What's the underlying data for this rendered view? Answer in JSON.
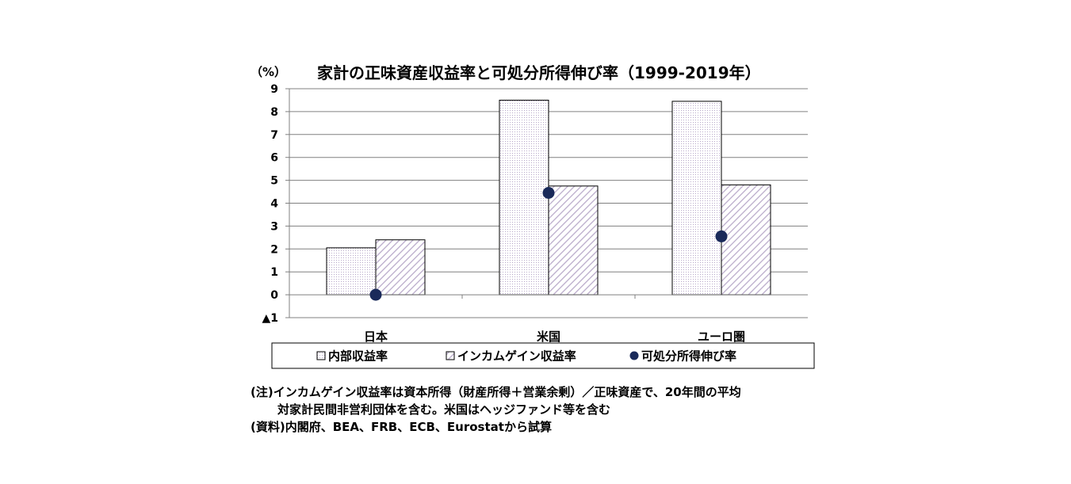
{
  "chart_data": {
    "type": "bar",
    "title": "家計の正味資産収益率と可処分所得伸び率（1999-2019年）",
    "ylabel": "（%）",
    "categories": [
      "日本",
      "米国",
      "ユーロ圏"
    ],
    "series": [
      {
        "name": "内部収益率",
        "kind": "bar",
        "pattern": "dots",
        "values": [
          2.05,
          8.5,
          8.45
        ]
      },
      {
        "name": "インカムゲイン収益率",
        "kind": "bar",
        "pattern": "hatch",
        "values": [
          2.4,
          4.75,
          4.8
        ]
      },
      {
        "name": "可処分所得伸び率",
        "kind": "marker",
        "values": [
          0.0,
          4.45,
          2.55
        ]
      }
    ],
    "ylim": [
      -1,
      9
    ],
    "yticks": [
      9,
      8,
      7,
      6,
      5,
      4,
      3,
      2,
      1,
      0,
      -1
    ],
    "ytick_labels": [
      "9",
      "8",
      "7",
      "6",
      "5",
      "4",
      "3",
      "2",
      "1",
      "0",
      "▲1"
    ],
    "grid": true,
    "legend_position": "bottom",
    "colors": {
      "bar_fill": "#ffffff",
      "pattern": "#b8a9c9",
      "marker": "#1a2a5a",
      "grid": "#808080",
      "axis": "#808080"
    }
  },
  "notes": {
    "line1": "(注)インカムゲイン収益率は資本所得（財産所得＋営業余剰）／正味資産で、20年間の平均",
    "line2": "対家計民間非営利団体を含む。米国はヘッジファンド等を含む",
    "line3": "(資料)内閣府、BEA、FRB、ECB、Eurostatから試算"
  }
}
